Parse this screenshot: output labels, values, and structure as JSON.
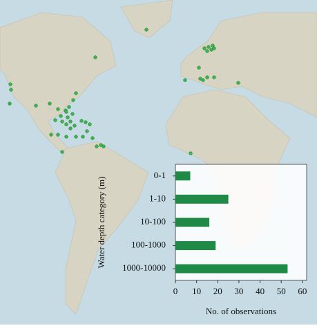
{
  "chart_data": {
    "type": "hbar",
    "ylabel": "Water depth category (m)",
    "xlabel": "No. of observations",
    "categories": [
      "0-1",
      "1-10",
      "10-100",
      "100-1000",
      "1000-10000"
    ],
    "values": [
      7,
      25,
      16,
      19,
      53
    ],
    "color": "#1e8a45",
    "xlim": [
      0,
      62
    ],
    "xticks": [
      0,
      10,
      20,
      30,
      40,
      50,
      60
    ],
    "grid": false
  }
}
